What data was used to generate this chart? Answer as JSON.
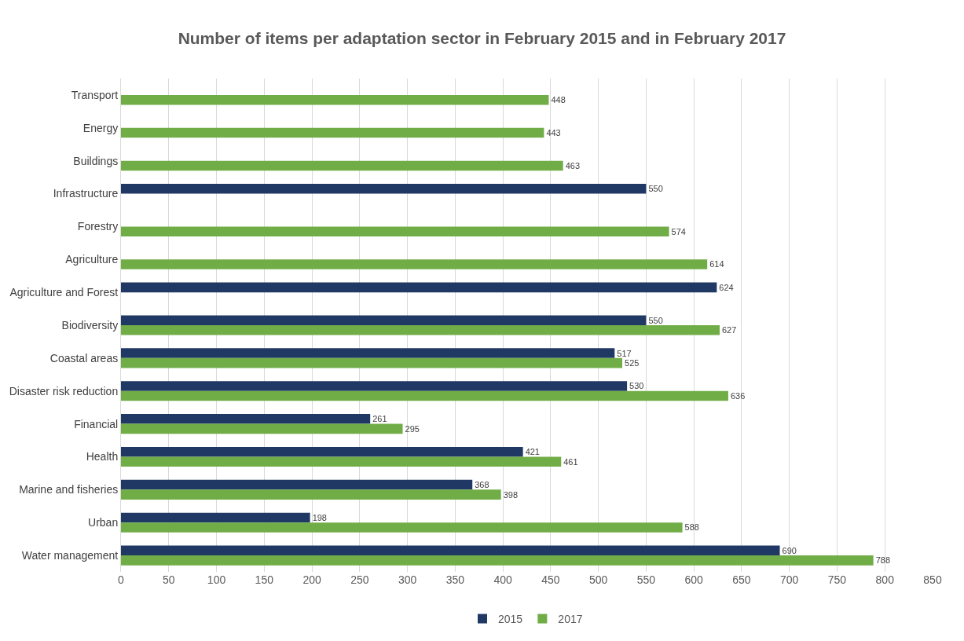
{
  "chart_data": {
    "type": "bar",
    "orientation": "horizontal",
    "title": "Number of items per adaptation sector in February 2015 and in February 2017",
    "categories": [
      "Transport",
      "Energy",
      "Buildings",
      "Infrastructure",
      "Forestry",
      "Agriculture",
      "Agriculture and Forest",
      "Biodiversity",
      "Coastal areas",
      "Disaster risk reduction",
      "Financial",
      "Health",
      "Marine and fisheries",
      "Urban",
      "Water management"
    ],
    "series": [
      {
        "name": "2015",
        "color": "#203864",
        "values": [
          null,
          null,
          null,
          550,
          null,
          null,
          624,
          550,
          517,
          530,
          261,
          421,
          368,
          198,
          690
        ]
      },
      {
        "name": "2017",
        "color": "#70ad47",
        "values": [
          448,
          443,
          463,
          null,
          574,
          614,
          null,
          627,
          525,
          636,
          295,
          461,
          398,
          588,
          788
        ]
      }
    ],
    "xlim": [
      0,
      850
    ],
    "xticks": [
      0,
      50,
      100,
      150,
      200,
      250,
      300,
      350,
      400,
      450,
      500,
      550,
      600,
      650,
      700,
      750,
      800,
      850
    ],
    "grid": "x",
    "legend": "bottom",
    "data_labels": true
  }
}
